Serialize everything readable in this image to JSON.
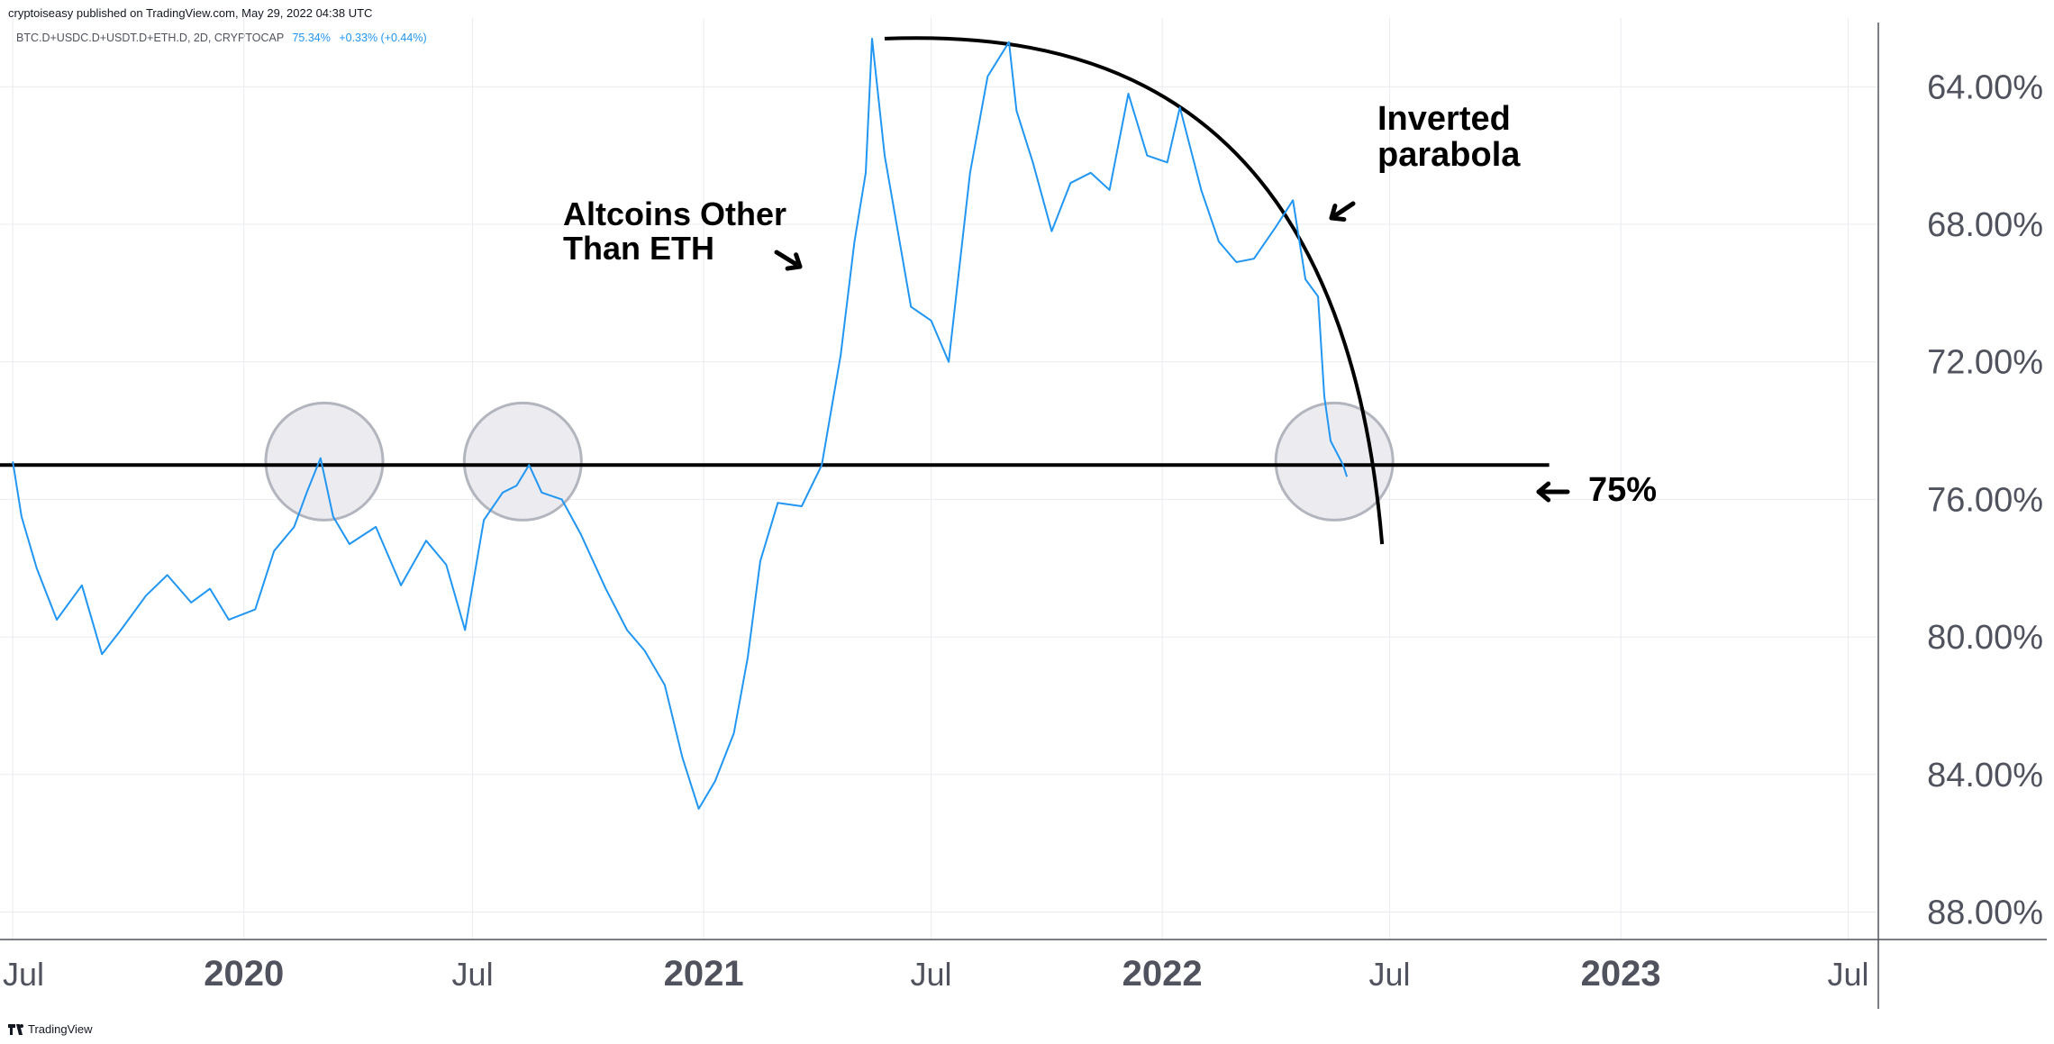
{
  "header": {
    "publisher": "cryptoiseasy published on TradingView.com, May 29, 2022 04:38 UTC",
    "symbol": "BTC.D+USDC.D+USDT.D+ETH.D, 2D, CRYPTOCAP",
    "last_value": "75.34%",
    "change": "+0.33% (+0.44%)"
  },
  "footer": {
    "brand": "TradingView"
  },
  "annotations": {
    "altcoins": "Altcoins Other Than ETH",
    "inverted": "Inverted parabola",
    "level": "75%"
  },
  "colors": {
    "series": "#2196f3",
    "annotation": "#000000",
    "circle_fill": "#ececf0",
    "circle_stroke": "#b2b5be",
    "grid": "#e9ebef",
    "axis_text": "#50535e"
  },
  "icons": {
    "annotation_arrows": "arrow-icon",
    "footer_logo": "tradingview-logo-icon"
  },
  "chart_data": {
    "type": "line",
    "y_axis": {
      "inverted": true,
      "side": "right",
      "range": [
        62.0,
        88.8
      ],
      "ticks": [
        "64.00%",
        "68.00%",
        "72.00%",
        "76.00%",
        "80.00%",
        "84.00%",
        "88.00%"
      ]
    },
    "x_axis": {
      "range": [
        "2019-06-28",
        "2023-07-25"
      ],
      "ticks": [
        "Jul",
        "2020",
        "Jul",
        "2021",
        "Jul",
        "2022",
        "Jul",
        "2023",
        "Jul"
      ]
    },
    "series": [
      {
        "x": [
          "2019-07-01",
          "2019-07-08",
          "2019-07-20",
          "2019-08-05",
          "2019-08-25",
          "2019-09-10",
          "2019-09-25",
          "2019-10-15",
          "2019-11-01",
          "2019-11-20",
          "2019-12-05",
          "2019-12-20",
          "2020-01-10",
          "2020-01-25",
          "2020-02-10",
          "2020-02-20",
          "2020-03-02",
          "2020-03-12",
          "2020-03-25",
          "2020-04-15",
          "2020-05-05",
          "2020-05-25",
          "2020-06-10",
          "2020-06-25",
          "2020-07-10",
          "2020-07-25",
          "2020-08-05",
          "2020-08-15",
          "2020-08-25",
          "2020-09-10",
          "2020-09-25",
          "2020-10-15",
          "2020-11-01",
          "2020-11-15",
          "2020-12-01",
          "2020-12-15",
          "2020-12-28",
          "2021-01-10",
          "2021-01-25",
          "2021-02-05",
          "2021-02-15",
          "2021-03-01",
          "2021-03-20",
          "2021-04-05",
          "2021-04-20",
          "2021-05-01",
          "2021-05-10",
          "2021-05-15",
          "2021-05-25",
          "2021-06-15",
          "2021-07-01",
          "2021-07-15",
          "2021-08-01",
          "2021-08-15",
          "2021-09-01",
          "2021-09-07",
          "2021-09-20",
          "2021-10-05",
          "2021-10-20",
          "2021-11-05",
          "2021-11-20",
          "2021-12-05",
          "2021-12-20",
          "2022-01-05",
          "2022-01-15",
          "2022-02-01",
          "2022-02-15",
          "2022-03-01",
          "2022-03-15",
          "2022-04-01",
          "2022-04-15",
          "2022-04-25",
          "2022-05-05",
          "2022-05-10",
          "2022-05-15",
          "2022-05-25",
          "2022-05-28"
        ],
        "y": [
          74.9,
          76.5,
          78.0,
          79.5,
          78.5,
          80.5,
          79.8,
          78.8,
          78.2,
          79.0,
          78.6,
          79.5,
          79.2,
          77.5,
          76.8,
          75.8,
          74.8,
          76.5,
          77.3,
          76.8,
          78.5,
          77.2,
          77.9,
          79.8,
          76.6,
          75.8,
          75.6,
          75.0,
          75.8,
          76.0,
          77.0,
          78.6,
          79.8,
          80.4,
          81.4,
          83.5,
          85.0,
          84.2,
          82.8,
          80.6,
          77.8,
          76.1,
          76.2,
          75.0,
          71.8,
          68.5,
          66.5,
          62.6,
          66.0,
          70.4,
          70.8,
          72.0,
          66.5,
          63.7,
          62.7,
          64.7,
          66.2,
          68.2,
          66.8,
          66.5,
          67.0,
          64.2,
          66.0,
          66.2,
          64.6,
          67.0,
          68.5,
          69.1,
          69.0,
          68.1,
          67.3,
          69.6,
          70.1,
          73.0,
          74.3,
          75.0,
          75.34
        ]
      }
    ],
    "reference_lines": [
      {
        "value": 75.0,
        "label": "75%"
      }
    ],
    "highlight_circles": [
      "2020-03-05",
      "2020-08-10",
      "2022-05-18"
    ],
    "parabola": {
      "from": "2021-05-25",
      "to": "2022-06-25",
      "start_value": 62.6,
      "end_value": 77.3
    }
  }
}
